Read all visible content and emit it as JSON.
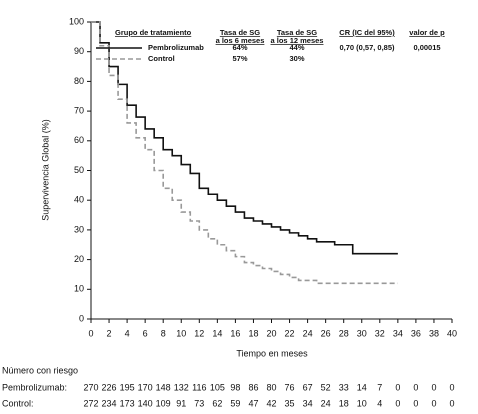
{
  "chart_data": {
    "type": "line",
    "step": true,
    "ylabel": "Supervivencia Global (%)",
    "xlabel": "Tiempo en meses",
    "x": [
      0,
      1,
      2,
      3,
      4,
      5,
      6,
      7,
      8,
      9,
      10,
      11,
      12,
      13,
      14,
      15,
      16,
      17,
      18,
      19,
      20,
      21,
      22,
      23,
      24,
      25,
      26,
      27,
      28,
      29,
      30,
      34
    ],
    "series": [
      {
        "name": "Pembrolizumab",
        "color": "#111111",
        "dash": false,
        "values": [
          100,
          93,
          85,
          79,
          72,
          68,
          64,
          61,
          57,
          55,
          52,
          49,
          44,
          42,
          40,
          38,
          36,
          34,
          33,
          32,
          31,
          30,
          29,
          28,
          27,
          26,
          26,
          25,
          25,
          22,
          22,
          22
        ]
      },
      {
        "name": "Control",
        "color": "#999999",
        "dash": true,
        "values": [
          100,
          92,
          82,
          74,
          66,
          61,
          57,
          50,
          44,
          40,
          36,
          33,
          30,
          27,
          25,
          23,
          21,
          19,
          18,
          17,
          16,
          15,
          14,
          13,
          13,
          12,
          12,
          12,
          12,
          12,
          12,
          12
        ]
      }
    ],
    "xlim": [
      0,
      40
    ],
    "xticks": [
      0,
      2,
      4,
      6,
      8,
      10,
      12,
      14,
      16,
      18,
      20,
      22,
      24,
      26,
      28,
      30,
      32,
      34,
      36,
      38,
      40
    ],
    "ylim": [
      0,
      100
    ],
    "yticks": [
      0,
      10,
      20,
      30,
      40,
      50,
      60,
      70,
      80,
      90,
      100
    ],
    "grid": false,
    "legend_table": {
      "headers": [
        [
          "Grupo de tratamiento"
        ],
        [
          "Tasa de SG",
          "a los 6 meses"
        ],
        [
          "Tasa de SG",
          "a los 12 meses"
        ],
        [
          "CR (IC del 95%)"
        ],
        [
          "valor de p"
        ]
      ],
      "rows": [
        [
          "64%",
          "44%",
          "0,70 (0,57, 0,85)",
          "0,00015"
        ],
        [
          "57%",
          "30%"
        ]
      ]
    },
    "risk_table": {
      "title": "Número con riesgo",
      "rows": [
        {
          "label": "Pembrolizumab:",
          "values": [
            270,
            226,
            195,
            170,
            148,
            132,
            116,
            105,
            98,
            86,
            80,
            76,
            67,
            52,
            33,
            14,
            7,
            0,
            0,
            0,
            0
          ]
        },
        {
          "label": "Control:",
          "values": [
            272,
            234,
            173,
            140,
            109,
            91,
            73,
            62,
            59,
            47,
            42,
            35,
            34,
            24,
            18,
            10,
            4,
            0,
            0,
            0,
            0
          ]
        }
      ]
    }
  }
}
